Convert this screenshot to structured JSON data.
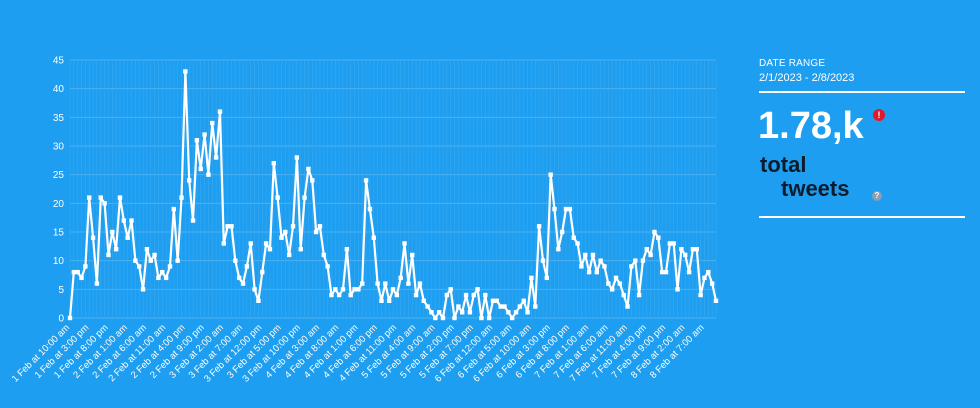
{
  "chart_data": {
    "type": "line",
    "title": "",
    "xlabel": "",
    "ylabel": "",
    "ylim": [
      0,
      45
    ],
    "y_ticks": [
      0,
      5,
      10,
      15,
      20,
      25,
      30,
      35,
      40,
      45
    ],
    "grid": true,
    "series_color": "#ffffff",
    "x_tick_labels": [
      "1 Feb at 10:00 am",
      "1 Feb at 3:00 pm",
      "1 Feb at 8:00 pm",
      "2 Feb at 1:00 am",
      "2 Feb at 6:00 am",
      "2 Feb at 11:00 am",
      "2 Feb at 4:00 pm",
      "2 Feb at 9:00 pm",
      "3 Feb at 2:00 am",
      "3 Feb at 7:00 am",
      "3 Feb at 12:00 pm",
      "3 Feb at 5:00 pm",
      "3 Feb at 10:00 pm",
      "4 Feb at 3:00 am",
      "4 Feb at 8:00 am",
      "4 Feb at 1:00 pm",
      "4 Feb at 6:00 pm",
      "4 Feb at 11:00 pm",
      "5 Feb at 4:00 am",
      "5 Feb at 9:00 am",
      "5 Feb at 2:00 pm",
      "5 Feb at 7:00 pm",
      "6 Feb at 12:00 am",
      "6 Feb at 5:00 am",
      "6 Feb at 10:00 am",
      "6 Feb at 3:00 pm",
      "6 Feb at 8:00 pm",
      "7 Feb at 1:00 am",
      "7 Feb at 6:00 am",
      "7 Feb at 11:00 am",
      "7 Feb at 4:00 pm",
      "7 Feb at 9:00 pm",
      "8 Feb at 2:00 am",
      "8 Feb at 7:00 am"
    ],
    "series": [
      {
        "values": [
          0,
          8,
          8,
          7,
          9,
          21,
          14,
          6,
          21,
          20,
          11,
          15,
          12,
          21,
          17,
          14,
          17,
          10,
          9,
          5,
          12,
          10,
          11,
          7,
          8,
          7,
          9,
          19,
          10,
          21,
          43,
          24,
          17,
          31,
          26,
          32,
          25,
          34,
          28,
          36,
          13,
          16,
          16,
          10,
          7,
          6,
          9,
          13,
          5,
          3,
          8,
          13,
          12,
          27,
          21,
          14,
          15,
          11,
          16,
          28,
          12,
          21,
          26,
          24,
          15,
          16,
          11,
          9,
          4,
          5,
          4,
          5,
          12,
          4,
          5,
          5,
          6,
          24,
          19,
          14,
          6,
          3,
          6,
          3,
          5,
          4,
          7,
          13,
          6,
          11,
          4,
          6,
          3,
          2,
          1,
          0,
          1,
          0,
          4,
          5,
          0,
          2,
          1,
          4,
          1,
          4,
          5,
          0,
          4,
          0,
          3,
          3,
          2,
          2,
          1,
          0,
          1,
          2,
          3,
          1,
          7,
          2,
          16,
          10,
          7,
          25,
          19,
          12,
          15,
          19,
          19,
          14,
          13,
          9,
          11,
          8,
          11,
          8,
          10,
          9,
          6,
          5,
          7,
          6,
          4,
          2,
          9,
          10,
          4,
          10,
          12,
          11,
          15,
          14,
          8,
          8,
          13,
          13,
          5,
          12,
          11,
          8,
          12,
          12,
          4,
          7,
          8,
          6,
          3
        ]
      }
    ]
  },
  "panel": {
    "date_range_label": "DATE RANGE",
    "date_range_value": "2/1/2023 - 2/8/2023",
    "total_value": "1.78,k",
    "alert_symbol": "!",
    "total_label_1": "total",
    "total_label_2": "tweets",
    "help_symbol": "?"
  }
}
